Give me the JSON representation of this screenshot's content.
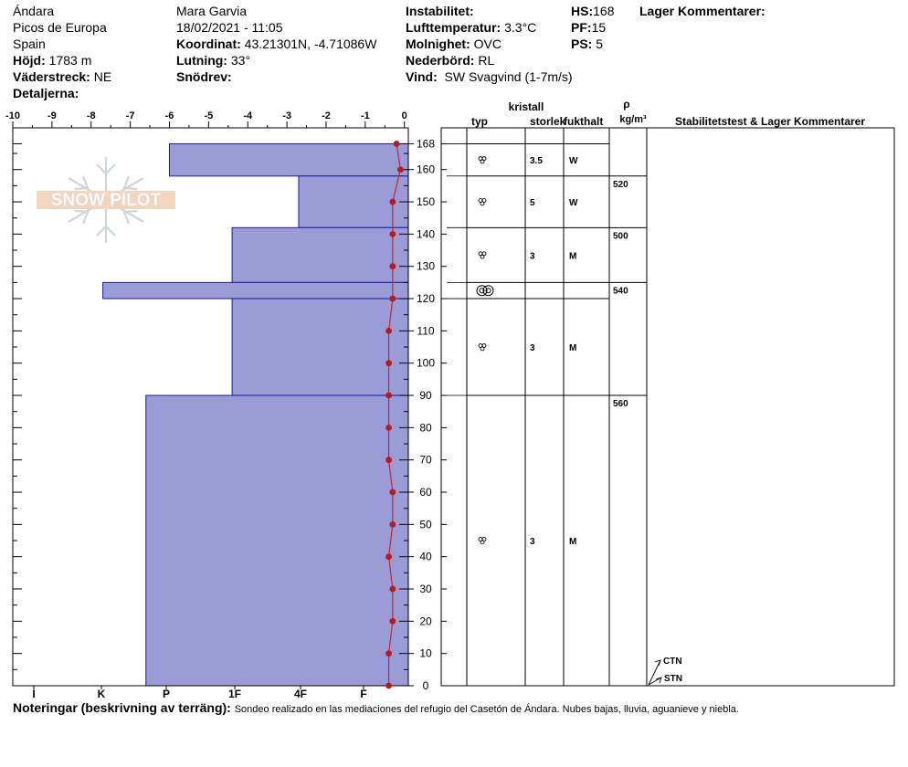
{
  "header": {
    "col1": {
      "location": "Ándara",
      "range": "Picos de Europa",
      "country": "Spain",
      "elevation_label": "Höjd:",
      "elevation_value": "1783 m",
      "aspect_label": "Väderstreck:",
      "aspect_value": "NE",
      "details_label": "Detaljerna:"
    },
    "col2": {
      "observer": "Mara Garvia",
      "datetime": "18/02/2021 - 11:05",
      "coord_label": "Koordinat:",
      "coord_value": "43.21301N, -4.71086W",
      "slope_label": "Lutning:",
      "slope_value": "33°",
      "drift_label": "Snödrev:"
    },
    "col3": {
      "instability_label": "Instabilitet:",
      "airtemp_label": "Lufttemperatur:",
      "airtemp_value": "3.3°C",
      "sky_label": "Molnighet:",
      "sky_value": "OVC",
      "precip_label": "Nederbörd:",
      "precip_value": "RL",
      "wind_label": "Vind:",
      "wind_value": "SW Svagvind (1-7m/s)"
    },
    "col4": {
      "hs_label": "HS:",
      "hs_value": "168",
      "pf_label": "PF:",
      "pf_value": "15",
      "ps_label": "PS:",
      "ps_value": "5"
    },
    "layer_comments_label": "Lager Kommentarer:"
  },
  "logo": {
    "text": "SNOW PILOT"
  },
  "table_headers": {
    "crystal": "kristall",
    "type": "typ",
    "size": "storlek",
    "moisture": "fukthalt",
    "rho": "ρ",
    "density_unit": "kg/m³",
    "stability": "Stabilitetstest & Lager Kommentarer"
  },
  "chart_data": {
    "type": "bar",
    "temperature_axis": {
      "ticks": [
        -10,
        -9,
        -8,
        -7,
        -6,
        -5,
        -4,
        -3,
        -2,
        -1,
        0
      ],
      "tick_labels": [
        "-10",
        "-9",
        "-8",
        "-7",
        "-6",
        "-5",
        "-4",
        "-3",
        "-2",
        "-1",
        "0"
      ],
      "range": [
        -10,
        0.1
      ]
    },
    "hardness_axis": {
      "labels": [
        "I",
        "K",
        "P",
        "1F",
        "4F",
        "F"
      ]
    },
    "height_axis": {
      "ticks": [
        0,
        10,
        20,
        30,
        40,
        50,
        60,
        70,
        80,
        90,
        100,
        110,
        120,
        130,
        140,
        150,
        160,
        168
      ],
      "tick_labels": [
        "0",
        "10",
        "20",
        "30",
        "40",
        "50",
        "60",
        "70",
        "80",
        "90",
        "100",
        "110",
        "120",
        "130",
        "140",
        "150",
        "160",
        "168"
      ],
      "range": [
        0,
        172
      ]
    },
    "layers": [
      {
        "bottom": 158,
        "top": 168,
        "hardness": "4F-",
        "hardness_index": 6.1,
        "grain": "rounded",
        "size": "3.5",
        "moisture": "W",
        "density": ""
      },
      {
        "bottom": 142,
        "top": 158,
        "hardness": "1F+",
        "hardness_index": 2.8,
        "grain": "rounded",
        "size": "5",
        "moisture": "W",
        "density": "520"
      },
      {
        "bottom": 125,
        "top": 142,
        "hardness": "F-",
        "hardness_index": 4.5,
        "grain": "rounded",
        "size": "3",
        "moisture": "M",
        "density": "500"
      },
      {
        "bottom": 120,
        "top": 125,
        "hardness": "K",
        "hardness_index": 7.8,
        "grain": "ice",
        "size": "",
        "moisture": "",
        "density": "540"
      },
      {
        "bottom": 90,
        "top": 120,
        "hardness": "F-",
        "hardness_index": 4.5,
        "grain": "rounded",
        "size": "3",
        "moisture": "M",
        "density": ""
      },
      {
        "bottom": 0,
        "top": 90,
        "hardness": "P+",
        "hardness_index": 6.7,
        "grain": "rounded",
        "size": "3",
        "moisture": "M",
        "density": "560"
      }
    ],
    "temperature_profile": {
      "height": [
        168,
        160,
        150,
        140,
        130,
        120,
        110,
        100,
        90,
        80,
        70,
        60,
        50,
        40,
        30,
        20,
        10,
        0
      ],
      "temperature": [
        -0.2,
        -0.1,
        -0.3,
        -0.3,
        -0.3,
        -0.3,
        -0.4,
        -0.4,
        -0.4,
        -0.4,
        -0.4,
        -0.3,
        -0.3,
        -0.4,
        -0.3,
        -0.3,
        -0.4,
        -0.4
      ]
    },
    "stability_tests": [
      {
        "label": "CTN",
        "height": 5
      },
      {
        "label": "STN",
        "height": 1
      }
    ]
  },
  "notes": {
    "label": "Noteringar (beskrivning av terräng):",
    "text": "Sondeo realizado en las mediaciones del  refugio del Casetón de Ándara. Nubes bajas, lluvia, aguanieve y niebla."
  }
}
